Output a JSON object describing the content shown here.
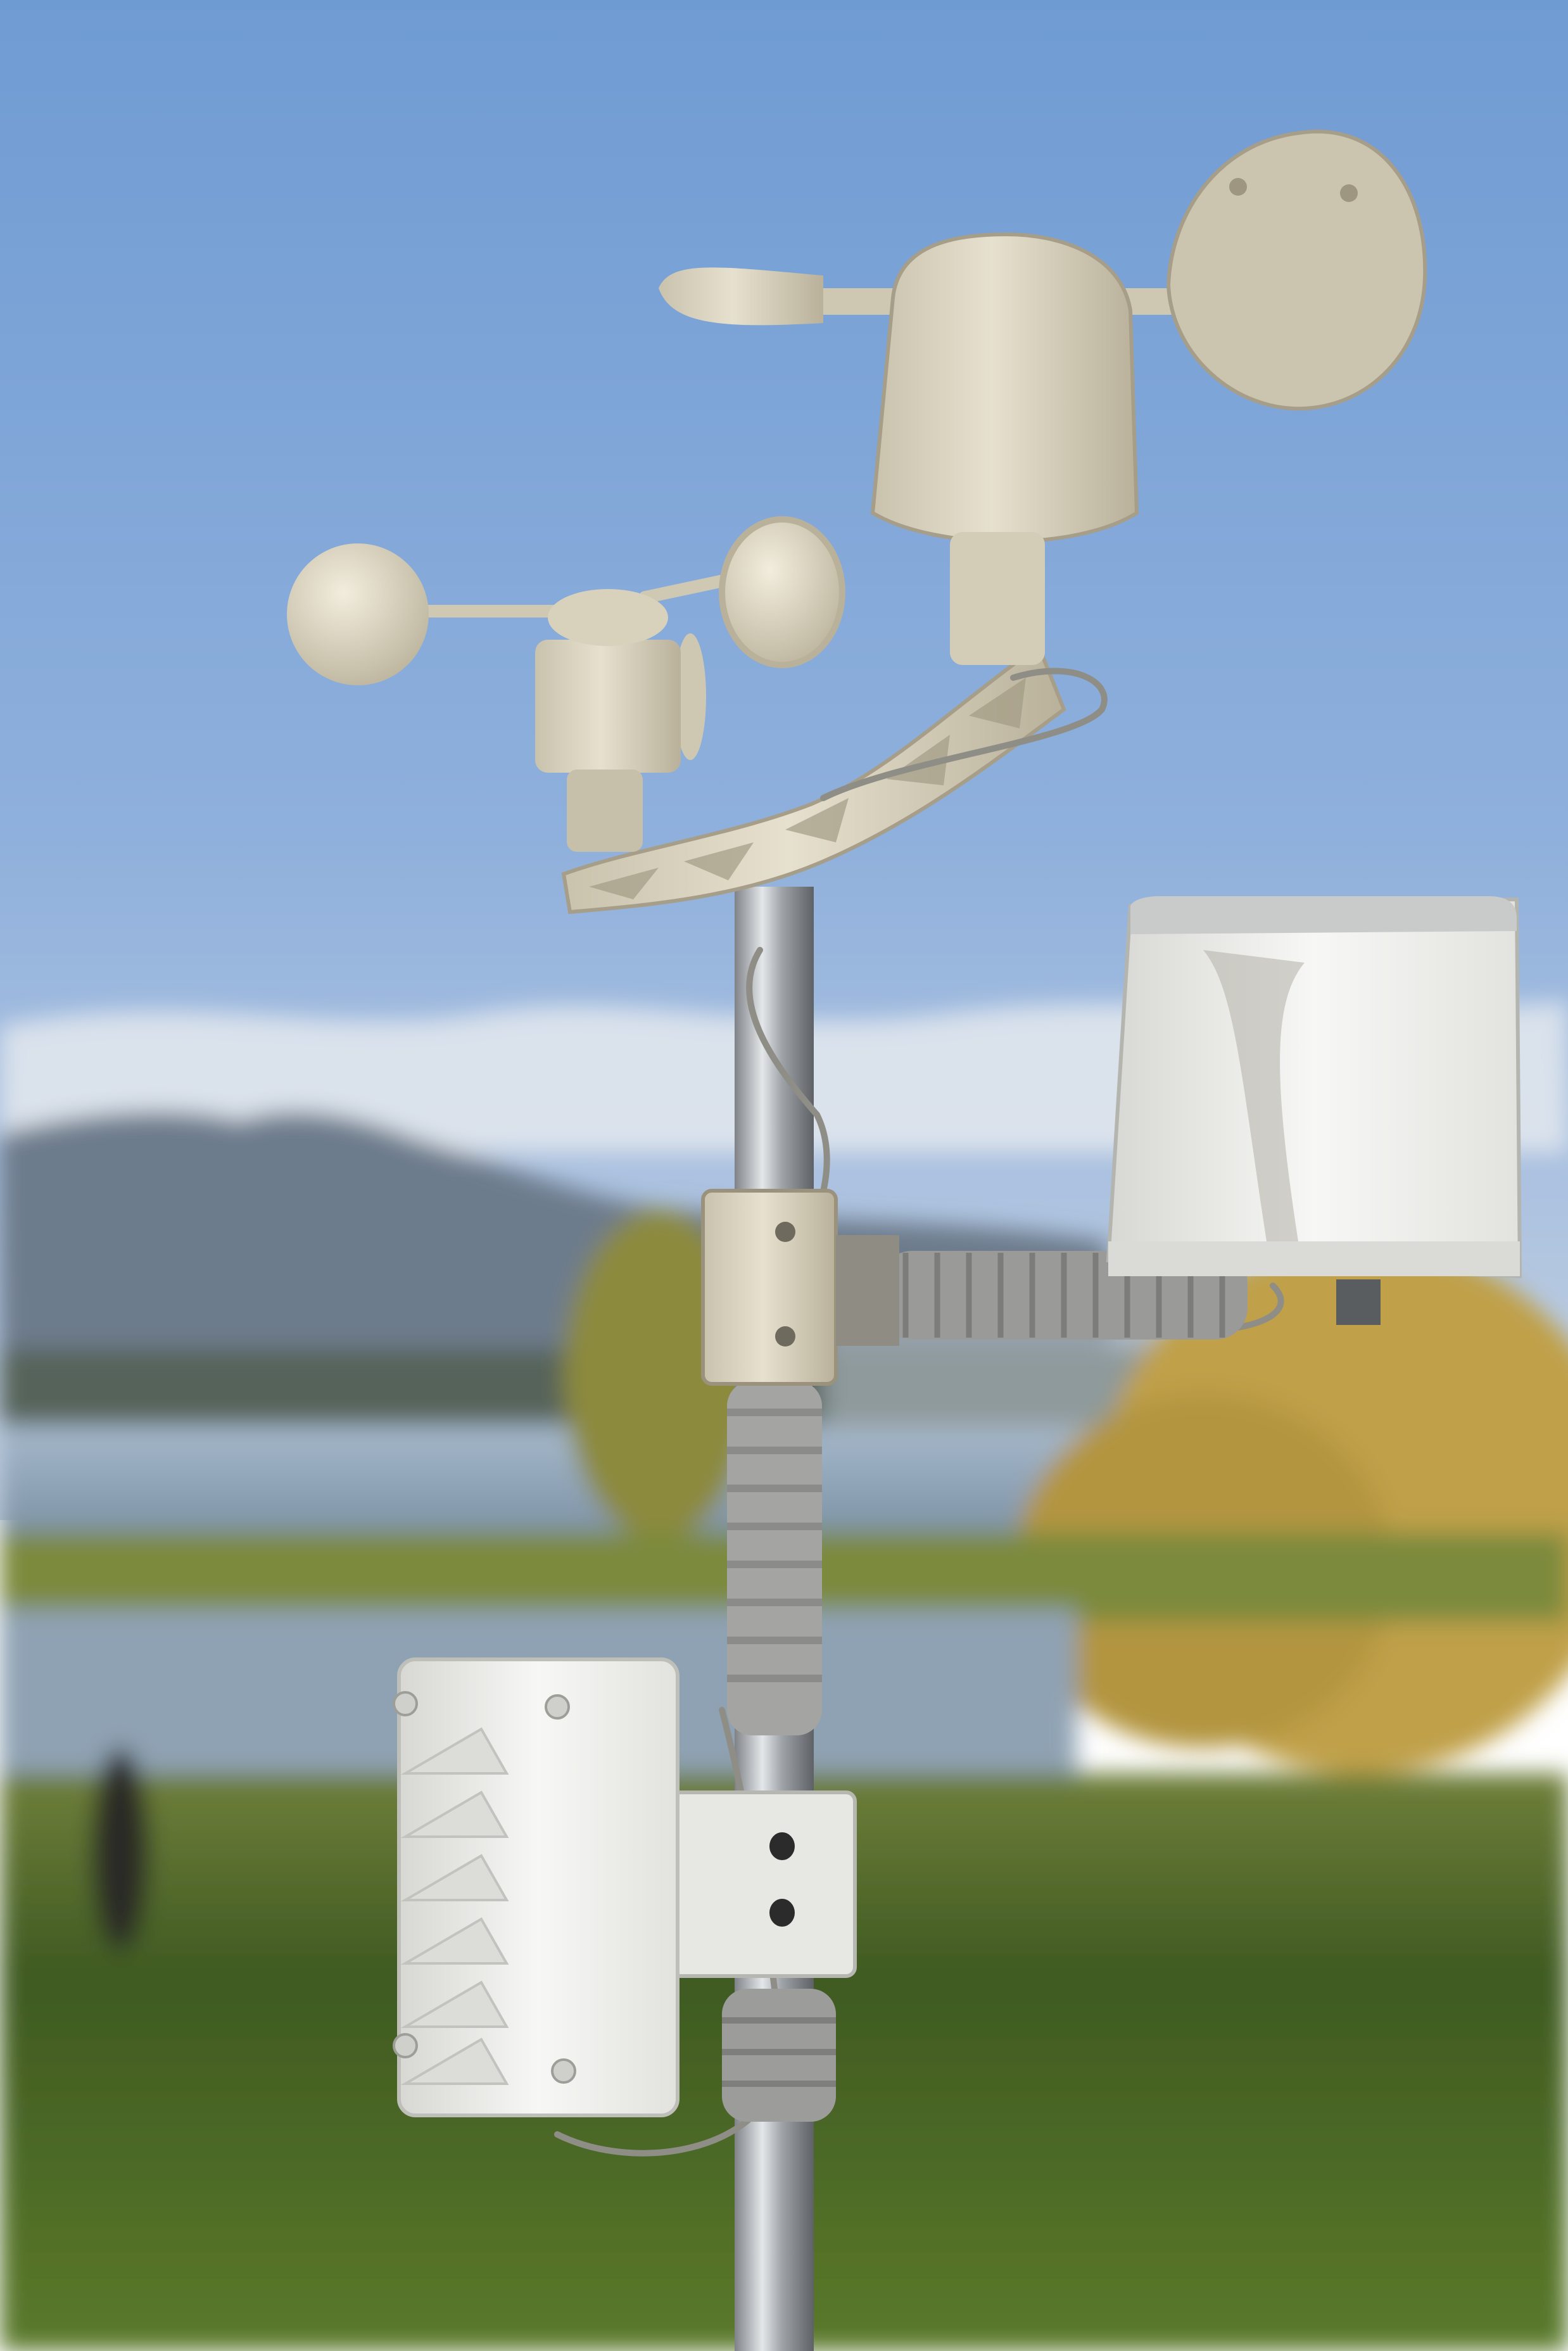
{
  "scene": {
    "subject": "weather-station",
    "components": [
      "anemometer",
      "wind-vane",
      "rain-gauge",
      "sensor-enclosure",
      "mounting-pole"
    ],
    "colors": {
      "sky_top": "#7FA6D6",
      "sky_bottom": "#B9CBE3",
      "mountains": "#6E7C8C",
      "water": "#8FA7BF",
      "grass": "#4E6B2A",
      "foliage": "#C2A24A",
      "plastic": "#D9D3C1",
      "enclosure": "#F1F1EF",
      "pole": "#B9BDC2",
      "cable": "#8E8F8F"
    }
  }
}
